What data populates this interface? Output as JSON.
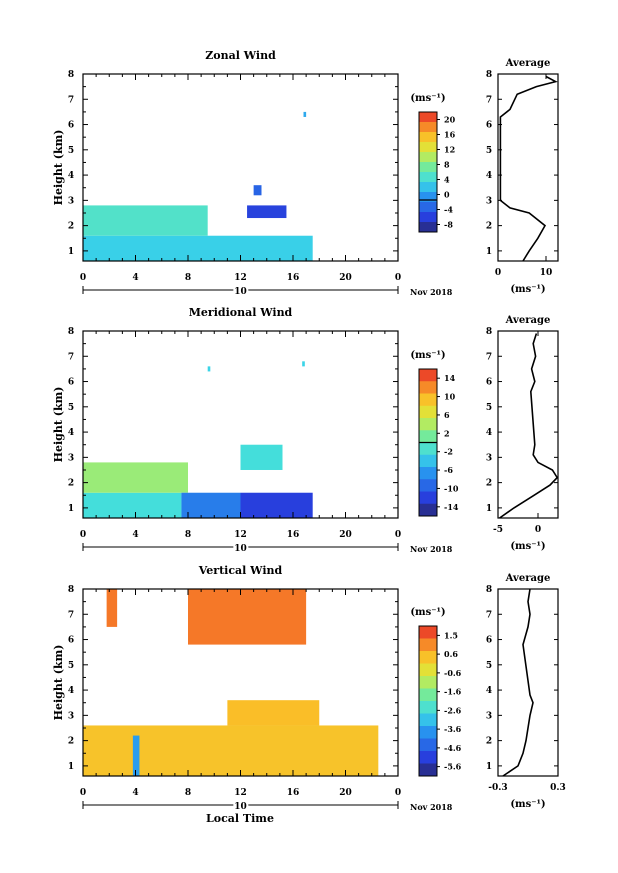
{
  "x_label": "Local Time",
  "date_label": "Nov 2018",
  "day_label": "10",
  "chart_data": [
    {
      "type": "heatmap",
      "title": "Zonal Wind",
      "ylabel": "Height (km)",
      "unit": "(ms⁻¹)",
      "xlim": [
        0,
        24
      ],
      "xticks": [
        "0",
        "4",
        "8",
        "12",
        "16",
        "20",
        "0"
      ],
      "ylim": [
        0.6,
        8
      ],
      "yticks": [
        "1",
        "2",
        "3",
        "4",
        "5",
        "6",
        "7",
        "8"
      ],
      "colorbar": {
        "min": -8,
        "max": 22,
        "ticks": [
          "20",
          "16",
          "12",
          "8",
          "4",
          "0",
          "-4",
          "-8"
        ],
        "contour": 0
      },
      "regions": [
        {
          "x0": 0,
          "x1": 17.5,
          "y0": 0.6,
          "y1": 1.6,
          "value": 4
        },
        {
          "x0": 0,
          "x1": 9.5,
          "y0": 1.6,
          "y1": 2.8,
          "value": 6
        },
        {
          "x0": 12.5,
          "x1": 15.5,
          "y0": 2.3,
          "y1": 2.8,
          "value": -4
        },
        {
          "x0": 13,
          "x1": 13.6,
          "y0": 3.2,
          "y1": 3.6,
          "value": -2
        },
        {
          "x0": 16.8,
          "x1": 17,
          "y0": 6.3,
          "y1": 6.5,
          "value": 2
        }
      ],
      "profile": {
        "title": "Average",
        "xlabel": "(ms⁻¹)",
        "xlim": [
          0,
          12.5
        ],
        "xticks": [
          "0",
          "10"
        ],
        "height": [
          0.6,
          1.0,
          1.5,
          2.0,
          2.5,
          2.7,
          3.0,
          6.3,
          6.6,
          7.2,
          7.5,
          7.7,
          7.9
        ],
        "value": [
          5.2,
          6.5,
          8.3,
          9.8,
          6.5,
          2.5,
          0.5,
          0.5,
          2.5,
          4,
          8,
          12,
          10
        ]
      }
    },
    {
      "type": "heatmap",
      "title": "Meridional Wind",
      "ylabel": "Height (km)",
      "unit": "(ms⁻¹)",
      "xlim": [
        0,
        24
      ],
      "xticks": [
        "0",
        "4",
        "8",
        "12",
        "16",
        "20",
        "0"
      ],
      "ylim": [
        0.6,
        8
      ],
      "yticks": [
        "1",
        "2",
        "3",
        "4",
        "5",
        "6",
        "7",
        "8"
      ],
      "colorbar": {
        "min": -16,
        "max": 16,
        "ticks": [
          "14",
          "10",
          "6",
          "2",
          "-2",
          "-6",
          "-10",
          "-14"
        ],
        "contour": 0
      },
      "regions": [
        {
          "x0": 0,
          "x1": 7.5,
          "y0": 0.6,
          "y1": 1.6,
          "value": -2
        },
        {
          "x0": 0,
          "x1": 8,
          "y0": 1.6,
          "y1": 2.8,
          "value": 3
        },
        {
          "x0": 7.5,
          "x1": 12,
          "y0": 0.6,
          "y1": 1.6,
          "value": -8
        },
        {
          "x0": 12,
          "x1": 17.5,
          "y0": 0.6,
          "y1": 1.6,
          "value": -12
        },
        {
          "x0": 12,
          "x1": 15.2,
          "y0": 2.5,
          "y1": 3.5,
          "value": -2
        },
        {
          "x0": 9.5,
          "x1": 9.7,
          "y0": 6.4,
          "y1": 6.6,
          "value": -3
        },
        {
          "x0": 16.7,
          "x1": 16.9,
          "y0": 6.6,
          "y1": 6.8,
          "value": -3
        }
      ],
      "profile": {
        "title": "Average",
        "xlabel": "(ms⁻¹)",
        "xlim": [
          -5,
          2.5
        ],
        "xticks": [
          "-5",
          "0"
        ],
        "height": [
          0.6,
          1.0,
          1.5,
          1.9,
          2.2,
          2.5,
          2.8,
          3.1,
          3.5,
          5.6,
          6.0,
          6.5,
          7.0,
          7.5,
          7.9
        ],
        "value": [
          -4.8,
          -3,
          -0.5,
          1.5,
          2.4,
          1.8,
          0,
          -0.6,
          -0.4,
          -0.9,
          -0.4,
          -0.8,
          -0.3,
          -0.6,
          -0.2
        ]
      }
    },
    {
      "type": "heatmap",
      "title": "Vertical Wind",
      "ylabel": "Height (km)",
      "unit": "(ms⁻¹)",
      "xlim": [
        0,
        24
      ],
      "xticks": [
        "0",
        "4",
        "8",
        "12",
        "16",
        "20",
        "0"
      ],
      "ylim": [
        0.6,
        8
      ],
      "yticks": [
        "1",
        "2",
        "3",
        "4",
        "5",
        "6",
        "7",
        "8"
      ],
      "colorbar": {
        "min": -6,
        "max": 2,
        "ticks": [
          "1.5",
          "0.6",
          "-0.6",
          "-1.6",
          "-2.6",
          "-3.6",
          "-4.6",
          "-5.6"
        ]
      },
      "regions": [
        {
          "x0": 0,
          "x1": 22.5,
          "y0": 0.6,
          "y1": 2.6,
          "value": 0.3
        },
        {
          "x0": 11,
          "x1": 18,
          "y0": 2.6,
          "y1": 3.6,
          "value": 0.4
        },
        {
          "x0": 3.8,
          "x1": 4.3,
          "y0": 0.6,
          "y1": 2.2,
          "value": -3.5
        },
        {
          "x0": 8,
          "x1": 17,
          "y0": 5.8,
          "y1": 8,
          "value": 1.2
        },
        {
          "x0": 1.8,
          "x1": 2.6,
          "y0": 6.5,
          "y1": 8,
          "value": 1.2
        }
      ],
      "profile": {
        "title": "Average",
        "xlabel": "(ms⁻¹)",
        "xlim": [
          -0.3,
          0.3
        ],
        "xticks": [
          "-0.3",
          "0.3"
        ],
        "height": [
          0.6,
          1.0,
          1.5,
          2.0,
          2.5,
          3.0,
          3.5,
          3.8,
          5.8,
          6.5,
          7.0,
          7.5,
          8.0
        ],
        "value": [
          -0.25,
          -0.1,
          -0.05,
          -0.02,
          0.0,
          0.02,
          0.05,
          0.02,
          -0.05,
          0.0,
          0.02,
          0.0,
          0.02
        ]
      }
    }
  ]
}
